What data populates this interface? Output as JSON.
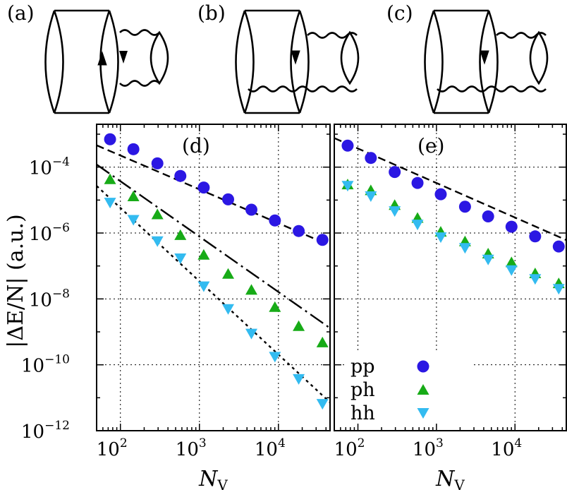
{
  "diagrams": [
    {
      "label": "(a)",
      "arrow": "up"
    },
    {
      "label": "(b)",
      "arrow": "down"
    },
    {
      "label": "(c)",
      "arrow": "down"
    }
  ],
  "chart_data": [
    {
      "type": "scatter",
      "panel_label": "(d)",
      "xlabel": "N_V",
      "ylabel": "|ΔE/N| (a.u.)",
      "xscale": "log",
      "yscale": "log",
      "xlim": [
        50,
        45000
      ],
      "ylim": [
        1e-12,
        0.002
      ],
      "grid": true,
      "x_ticks": [
        {
          "base": "10",
          "exp": "2"
        },
        {
          "base": "10",
          "exp": "3"
        },
        {
          "base": "10",
          "exp": "4"
        }
      ],
      "y_ticks": [
        {
          "base": "10",
          "exp": "−4"
        },
        {
          "base": "10",
          "exp": "−6"
        },
        {
          "base": "10",
          "exp": "−8"
        },
        {
          "base": "10",
          "exp": "−10"
        },
        {
          "base": "10",
          "exp": "−12"
        }
      ],
      "x": [
        74,
        146,
        294,
        574,
        1134,
        2310,
        4550,
        9026,
        18058,
        36064
      ],
      "series": [
        {
          "name": "pp",
          "marker": "circle",
          "color": "#2b17e3",
          "values": [
            0.0007,
            0.00035,
            0.00013,
            5.4e-05,
            2.4e-05,
            1.05e-05,
            5.1e-06,
            2.4e-06,
            1.15e-06,
            6.2e-07
          ]
        },
        {
          "name": "ph",
          "marker": "triangle-up",
          "color": "#17ab17",
          "values": [
            4.3e-05,
            1.3e-05,
            3.7e-06,
            8.7e-07,
            2.2e-07,
            5.8e-08,
            1.9e-08,
            5.7e-09,
            1.5e-09,
            4.8e-10
          ]
        },
        {
          "name": "hh",
          "marker": "triangle-down",
          "color": "#33bbf0",
          "values": [
            8.3e-06,
            2.5e-06,
            5.6e-07,
            1.7e-07,
            2.4e-08,
            4.9e-09,
            8.8e-10,
            1.75e-10,
            3.7e-11,
            6.5e-12
          ]
        }
      ],
      "fit_lines": [
        {
          "style": "dashed",
          "x": [
            50,
            36064
          ],
          "y": [
            0.00046,
            5.3e-07
          ]
        },
        {
          "style": "dash-dot",
          "x": [
            50,
            45000
          ],
          "y": [
            0.00012,
            1.3e-09
          ]
        },
        {
          "style": "dotted",
          "x": [
            50,
            45000
          ],
          "y": [
            2.7e-05,
            7.2e-12
          ]
        }
      ]
    },
    {
      "type": "scatter",
      "panel_label": "(e)",
      "xlabel": "N_V",
      "xscale": "log",
      "yscale": "log",
      "xlim": [
        50,
        45000
      ],
      "ylim": [
        1e-12,
        0.002
      ],
      "grid": true,
      "x_ticks": [
        {
          "base": "10",
          "exp": "2"
        },
        {
          "base": "10",
          "exp": "3"
        },
        {
          "base": "10",
          "exp": "4"
        }
      ],
      "x": [
        74,
        146,
        294,
        574,
        1134,
        2310,
        4550,
        9026,
        18058,
        36064
      ],
      "series": [
        {
          "name": "pp",
          "marker": "circle",
          "color": "#2b17e3",
          "values": [
            0.00045,
            0.00019,
            7.1e-05,
            3.3e-05,
            1.5e-05,
            6.3e-06,
            3.2e-06,
            1.55e-06,
            7.9e-07,
            3.9e-07
          ]
        },
        {
          "name": "ph",
          "marker": "triangle-up",
          "color": "#17ab17",
          "values": [
            3e-05,
            2e-05,
            7.1e-06,
            2.9e-06,
            1.1e-06,
            5.6e-07,
            2.4e-07,
            1.3e-07,
            6e-08,
            3e-08
          ]
        },
        {
          "name": "hh",
          "marker": "triangle-down",
          "color": "#33bbf0",
          "values": [
            2.7e-05,
            1.3e-05,
            4.6e-06,
            1.8e-06,
            7.4e-07,
            3.5e-07,
            1.55e-07,
            7.4e-08,
            4e-08,
            2e-08
          ]
        }
      ],
      "fit_lines": [
        {
          "style": "dashed",
          "x": [
            50,
            45000
          ],
          "y": [
            0.00076,
            6.1e-07
          ]
        }
      ]
    }
  ],
  "legend": {
    "placement": "lower-left of panel (e)",
    "entries": [
      {
        "label": "pp",
        "marker": "circle",
        "color": "#2b17e3"
      },
      {
        "label": "ph",
        "marker": "triangle-up",
        "color": "#17ab17"
      },
      {
        "label": "hh",
        "marker": "triangle-down",
        "color": "#33bbf0"
      }
    ]
  }
}
